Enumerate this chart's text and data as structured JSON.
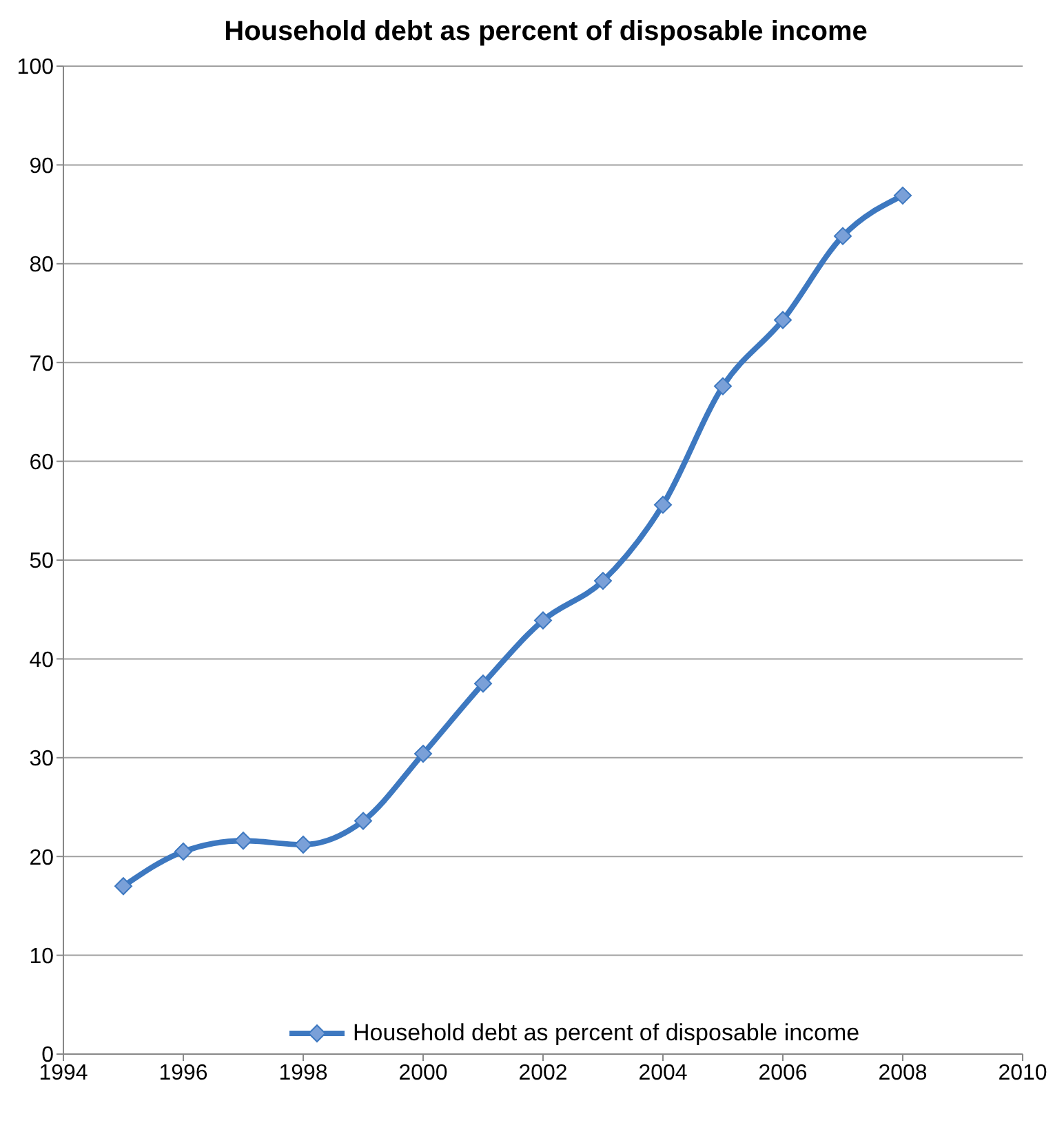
{
  "chart_data": {
    "type": "line",
    "title": "Household debt as percent of disposable income",
    "x": [
      1995,
      1996,
      1997,
      1998,
      1999,
      2000,
      2001,
      2002,
      2003,
      2004,
      2005,
      2006,
      2007,
      2008
    ],
    "series": [
      {
        "name": "Household debt as percent of disposable income",
        "color": "#3d78c0",
        "values": [
          17,
          20.5,
          21.6,
          21.2,
          23.6,
          30.4,
          37.5,
          43.9,
          47.9,
          55.6,
          67.6,
          74.3,
          82.8,
          86.9
        ]
      }
    ],
    "xlim": [
      1994,
      2010
    ],
    "xticks": [
      1994,
      1996,
      1998,
      2000,
      2002,
      2004,
      2006,
      2008,
      2010
    ],
    "ylim": [
      0,
      100
    ],
    "yticks": [
      0,
      10,
      20,
      30,
      40,
      50,
      60,
      70,
      80,
      90,
      100
    ],
    "grid": "y",
    "legend": "bottom",
    "marker": "diamond",
    "line_style": "solid"
  }
}
